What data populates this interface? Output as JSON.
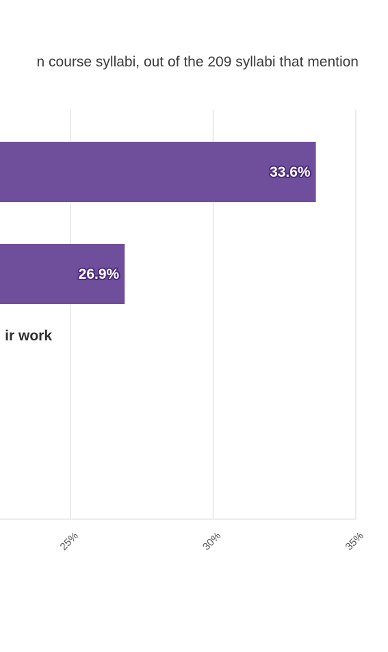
{
  "subtitle": "n course syllabi, out of the 209 syllabi that mention",
  "chart_data": {
    "type": "bar",
    "orientation": "horizontal",
    "subtitle": "n course syllabi, out of the 209 syllabi that mention",
    "categories": [
      "",
      "",
      "ir work"
    ],
    "values": [
      33.6,
      26.9,
      null
    ],
    "data_labels": [
      "33.6%",
      "26.9%",
      ""
    ],
    "x_ticks": [
      "25%",
      "30%",
      "35%"
    ],
    "x_tick_values": [
      25,
      30,
      35
    ],
    "xlim_visible": [
      20,
      35
    ],
    "grid": true,
    "bar_color": "#6f4f9c",
    "label_outline_color": "#4b2a7b"
  }
}
